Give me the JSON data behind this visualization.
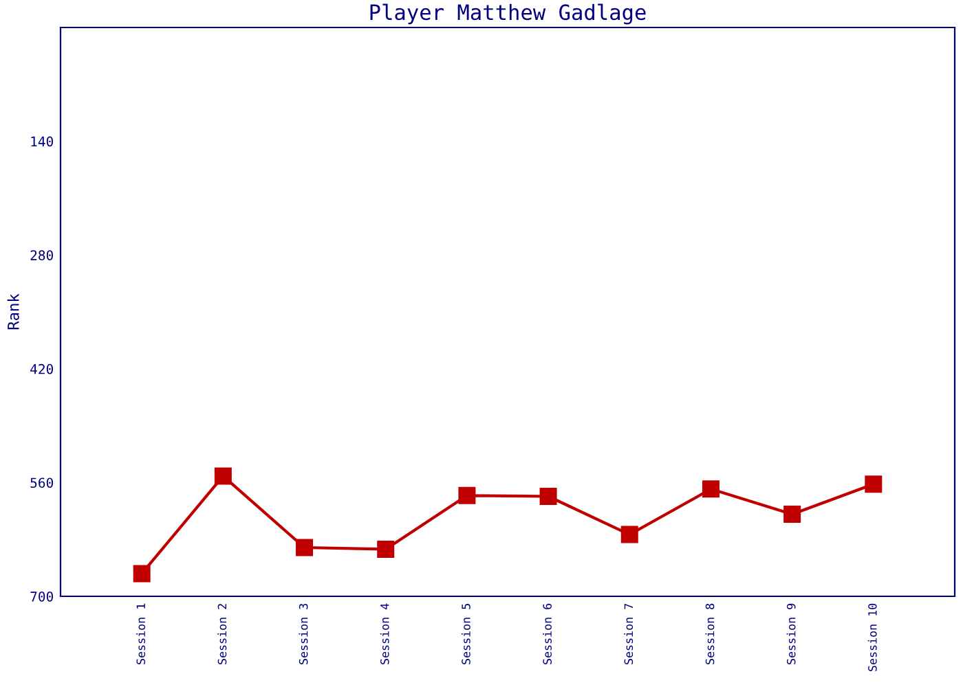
{
  "chart_data": {
    "type": "line",
    "title": "Player Matthew Gadlage",
    "ylabel": "Rank",
    "categories": [
      "Session 1",
      "Session 2",
      "Session 3",
      "Session 4",
      "Session 5",
      "Session 6",
      "Session 7",
      "Session 8",
      "Session 9",
      "Session 10"
    ],
    "series": [
      {
        "color": "#c00000",
        "values": [
          672,
          552,
          640,
          642,
          576,
          577,
          624,
          568,
          599,
          562
        ]
      }
    ],
    "ylim": [
      700,
      0
    ],
    "yticks": [
      140,
      280,
      420,
      560,
      700
    ],
    "marker": "square",
    "line_style": "solid",
    "grid": false,
    "legend": false
  }
}
